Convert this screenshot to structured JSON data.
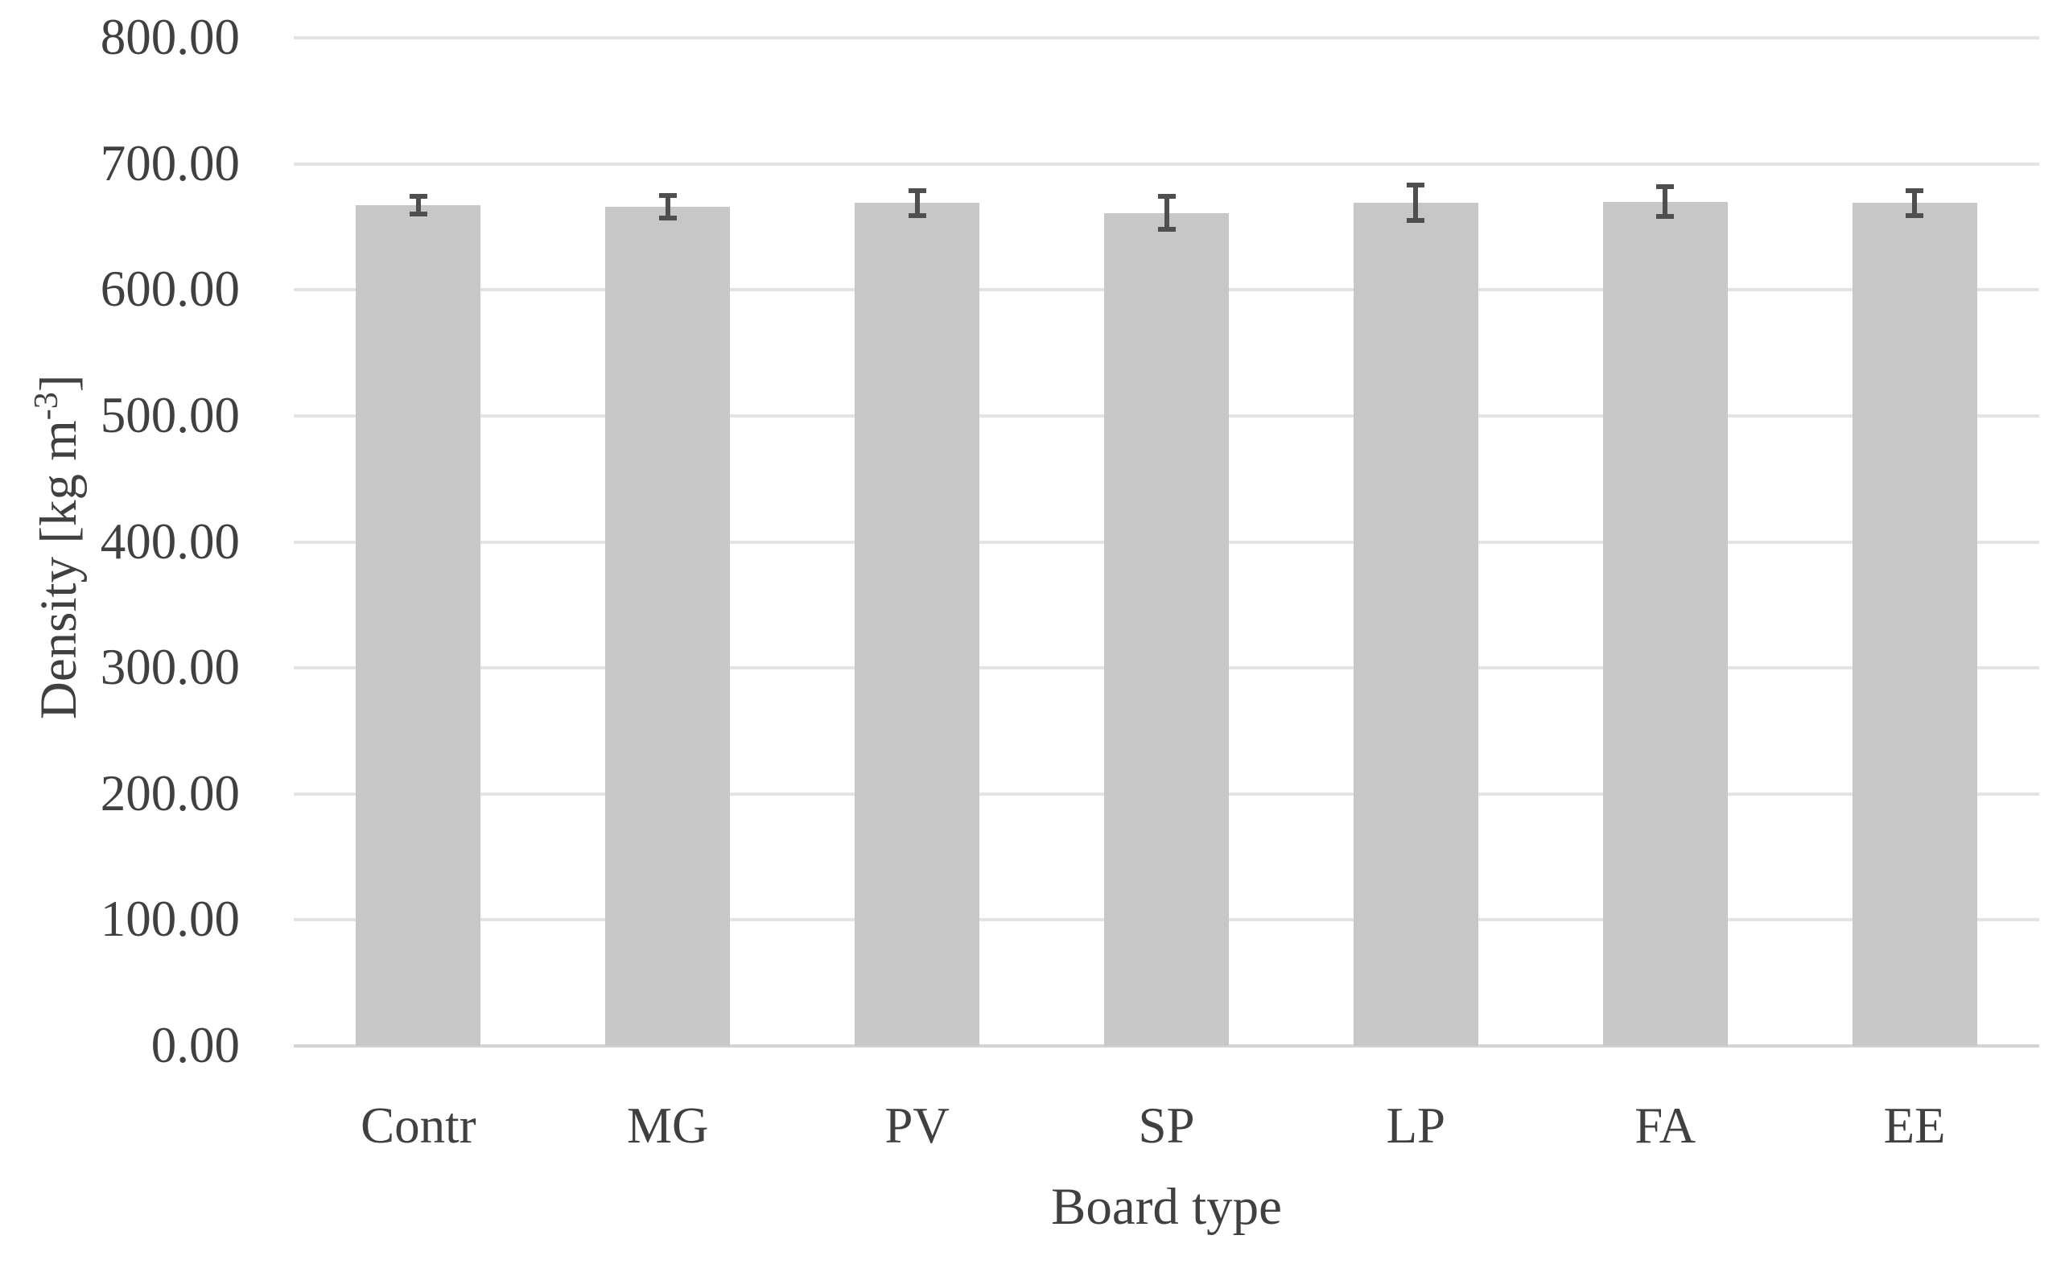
{
  "figure": {
    "background_color": "#ffffff",
    "text_color": "#404040",
    "bar_color": "#c6c7c6",
    "error_bar_color": "#4f4f4f",
    "gridline_color": "#e3e3e3",
    "axis_line_color": "#d4d4d4"
  },
  "chart_data": {
    "type": "bar",
    "title": "",
    "xlabel": "Board type",
    "ylabel": "Density [kg m⁻³]",
    "ylabel_prefix": "Density [kg m",
    "ylabel_superscript": "-3",
    "ylabel_suffix": "]",
    "categories": [
      "Contr",
      "MG",
      "PV",
      "SP",
      "LP",
      "FA",
      "EE"
    ],
    "values": [
      667,
      666,
      669,
      661,
      669,
      670,
      669
    ],
    "errors": [
      5,
      7,
      8,
      11,
      12,
      10,
      8
    ],
    "series": [
      {
        "name": "Density",
        "values": [
          667,
          666,
          669,
          661,
          669,
          670,
          669
        ],
        "errors": [
          5,
          7,
          8,
          11,
          12,
          10,
          8
        ]
      }
    ],
    "ylim": [
      0,
      800
    ],
    "ytick_step": 100,
    "ytick_labels": [
      "0.00",
      "100.00",
      "200.00",
      "300.00",
      "400.00",
      "500.00",
      "600.00",
      "700.00",
      "800.00"
    ],
    "grid": true,
    "legend_position": "none"
  }
}
